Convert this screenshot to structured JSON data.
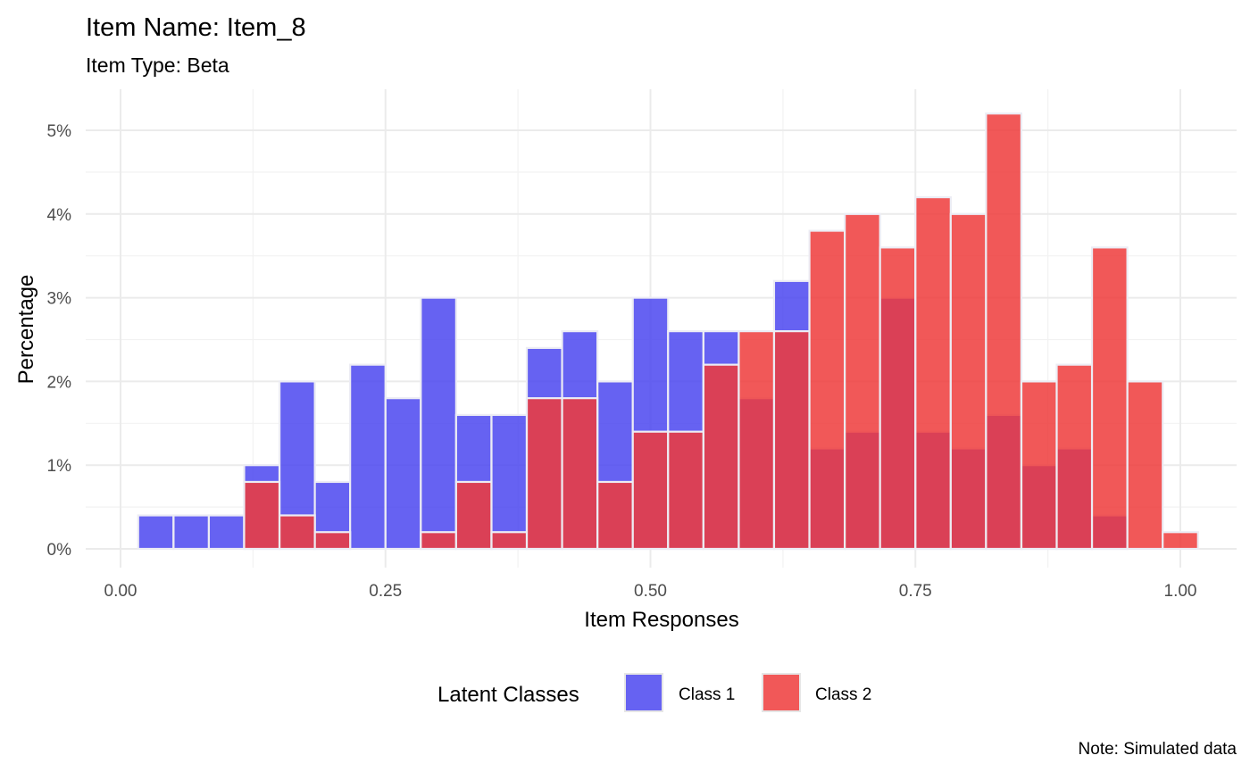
{
  "chart_data": {
    "type": "bar",
    "title": "Item Name: Item_8",
    "subtitle": "Item Type: Beta",
    "xlabel": "Item Responses",
    "ylabel": "Percentage",
    "caption": "Note: Simulated data",
    "legend_title": "Latent Classes",
    "legend_position": "bottom",
    "grid": true,
    "bin_width": 0.03333,
    "x_ticks": [
      "0.00",
      "0.25",
      "0.50",
      "0.75",
      "1.00"
    ],
    "y_ticks": [
      "0%",
      "1%",
      "2%",
      "3%",
      "4%",
      "5%"
    ],
    "xlim": [
      -0.0667,
      1.0333
    ],
    "ylim": [
      0,
      5.2
    ],
    "bin_centers": [
      0.0333,
      0.0667,
      0.1,
      0.1333,
      0.1667,
      0.2,
      0.2333,
      0.2667,
      0.3,
      0.3333,
      0.3667,
      0.4,
      0.4333,
      0.4667,
      0.5,
      0.5333,
      0.5667,
      0.6,
      0.6333,
      0.6667,
      0.7,
      0.7333,
      0.7667,
      0.8,
      0.8333,
      0.8667,
      0.9,
      0.9333,
      0.9667,
      1.0
    ],
    "series": [
      {
        "name": "Class 1",
        "color": "#4b46f0",
        "values": [
          0.4,
          0.4,
          0.4,
          1.0,
          2.0,
          0.8,
          2.2,
          1.8,
          3.0,
          1.6,
          1.6,
          2.4,
          2.6,
          2.0,
          3.0,
          2.6,
          2.6,
          1.8,
          3.2,
          1.2,
          1.4,
          3.0,
          1.4,
          1.2,
          1.6,
          1.0,
          1.2,
          0.4,
          0,
          0
        ]
      },
      {
        "name": "Class 2",
        "color": "#ee3b3b",
        "values": [
          0,
          0,
          0,
          0.8,
          0.4,
          0.2,
          0,
          0,
          0.2,
          0.8,
          0.2,
          1.8,
          1.8,
          0.8,
          1.4,
          1.4,
          2.2,
          2.6,
          2.6,
          3.8,
          4.0,
          3.6,
          4.2,
          4.0,
          5.2,
          2.0,
          2.2,
          3.6,
          2.0,
          0.2
        ]
      }
    ]
  }
}
